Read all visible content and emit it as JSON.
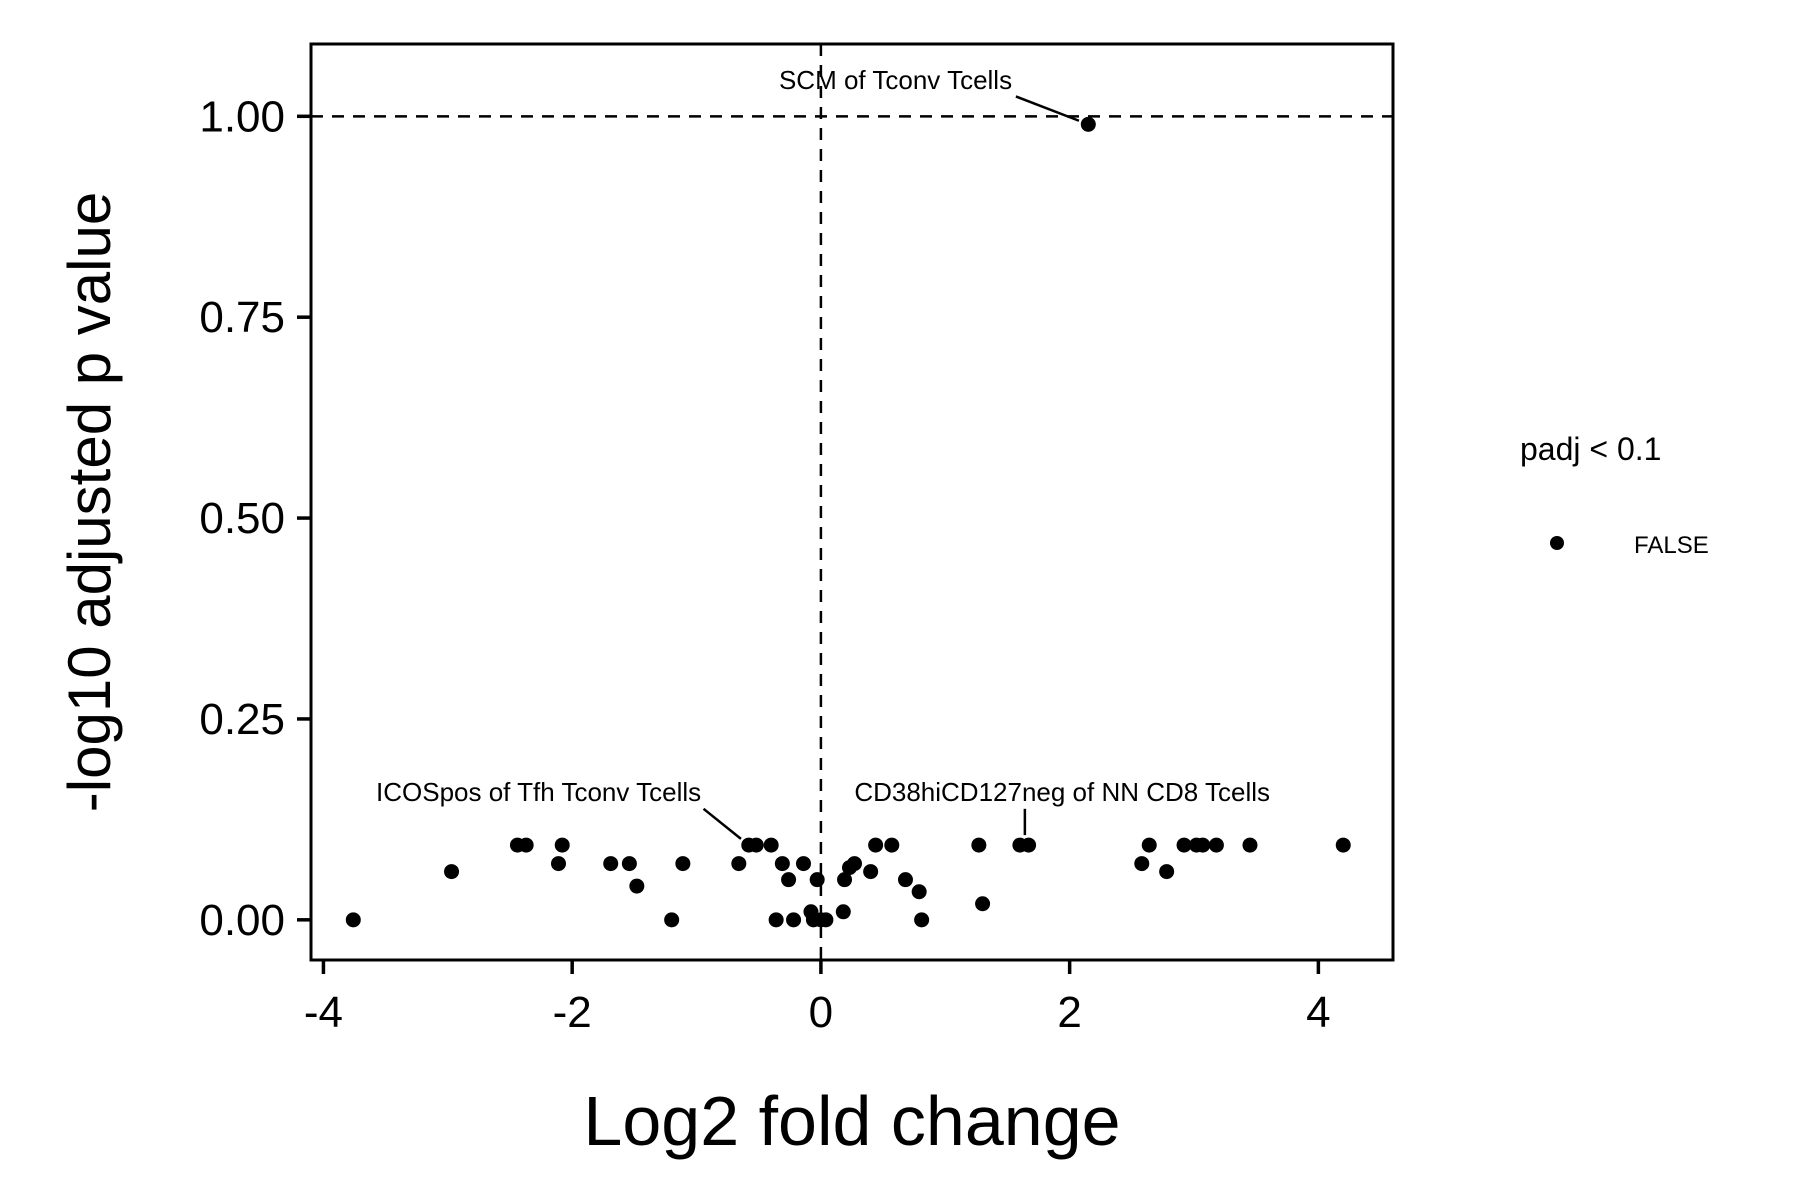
{
  "chart_data": {
    "type": "scatter",
    "xlabel": "Log2 fold change",
    "ylabel": "-log10 adjusted p value",
    "xlim": [
      -4.1,
      4.6
    ],
    "ylim": [
      -0.05,
      1.09
    ],
    "xticks": [
      -4,
      -2,
      0,
      2,
      4
    ],
    "xtick_labels": [
      "-4",
      "-2",
      "0",
      "2",
      "4"
    ],
    "yticks": [
      0,
      0.25,
      0.5,
      0.75,
      1.0
    ],
    "ytick_labels": [
      "0.00",
      "0.25",
      "0.50",
      "0.75",
      "1.00"
    ],
    "grid": false,
    "reference_lines": {
      "h": 1.0,
      "v": 0,
      "style": "dashed"
    },
    "legend": {
      "title": "padj < 0.1",
      "position": "right",
      "entries": [
        {
          "label": "FALSE",
          "color": "#000000"
        }
      ]
    },
    "point_color": "#000000",
    "points": [
      {
        "x": -3.76,
        "y": 0.0
      },
      {
        "x": -2.97,
        "y": 0.06
      },
      {
        "x": -2.44,
        "y": 0.093
      },
      {
        "x": -2.37,
        "y": 0.093
      },
      {
        "x": -2.11,
        "y": 0.07
      },
      {
        "x": -2.08,
        "y": 0.093
      },
      {
        "x": -1.69,
        "y": 0.07
      },
      {
        "x": -1.54,
        "y": 0.07
      },
      {
        "x": -1.48,
        "y": 0.042
      },
      {
        "x": -1.2,
        "y": 0.0
      },
      {
        "x": -1.11,
        "y": 0.07
      },
      {
        "x": -0.66,
        "y": 0.07
      },
      {
        "x": -0.58,
        "y": 0.093
      },
      {
        "x": -0.52,
        "y": 0.093
      },
      {
        "x": -0.4,
        "y": 0.093
      },
      {
        "x": -0.36,
        "y": 0.0
      },
      {
        "x": -0.31,
        "y": 0.07
      },
      {
        "x": -0.26,
        "y": 0.05
      },
      {
        "x": -0.22,
        "y": 0.0
      },
      {
        "x": -0.14,
        "y": 0.07
      },
      {
        "x": -0.08,
        "y": 0.01
      },
      {
        "x": -0.06,
        "y": 0.0
      },
      {
        "x": -0.03,
        "y": 0.05
      },
      {
        "x": 0.0,
        "y": 0.0
      },
      {
        "x": 0.04,
        "y": 0.0
      },
      {
        "x": 0.18,
        "y": 0.01
      },
      {
        "x": 0.19,
        "y": 0.05
      },
      {
        "x": 0.23,
        "y": 0.065
      },
      {
        "x": 0.27,
        "y": 0.07
      },
      {
        "x": 0.4,
        "y": 0.06
      },
      {
        "x": 0.44,
        "y": 0.093
      },
      {
        "x": 0.57,
        "y": 0.093
      },
      {
        "x": 0.68,
        "y": 0.05
      },
      {
        "x": 0.79,
        "y": 0.035
      },
      {
        "x": 0.81,
        "y": 0.0
      },
      {
        "x": 1.27,
        "y": 0.093
      },
      {
        "x": 1.3,
        "y": 0.02
      },
      {
        "x": 1.6,
        "y": 0.093
      },
      {
        "x": 1.67,
        "y": 0.093
      },
      {
        "x": 2.15,
        "y": 0.99
      },
      {
        "x": 2.58,
        "y": 0.07
      },
      {
        "x": 2.64,
        "y": 0.093
      },
      {
        "x": 2.78,
        "y": 0.06
      },
      {
        "x": 2.92,
        "y": 0.093
      },
      {
        "x": 3.02,
        "y": 0.093
      },
      {
        "x": 3.07,
        "y": 0.093
      },
      {
        "x": 3.18,
        "y": 0.093
      },
      {
        "x": 3.45,
        "y": 0.093
      },
      {
        "x": 4.2,
        "y": 0.093
      }
    ],
    "annotations": [
      {
        "label": "SCM of Tconv Tcells",
        "x": 2.15,
        "y": 0.99,
        "label_x": 0.6,
        "label_y": 1.034,
        "anchor": "middle"
      },
      {
        "label": "ICOSpos of Tfh Tconv Tcells",
        "x": -0.58,
        "y": 0.093,
        "label_x": -2.27,
        "label_y": 0.148,
        "anchor": "middle"
      },
      {
        "label": "CD38hiCD127neg of NN CD8 Tcells",
        "x": 1.64,
        "y": 0.093,
        "label_x": 1.94,
        "label_y": 0.148,
        "anchor": "middle"
      }
    ]
  }
}
